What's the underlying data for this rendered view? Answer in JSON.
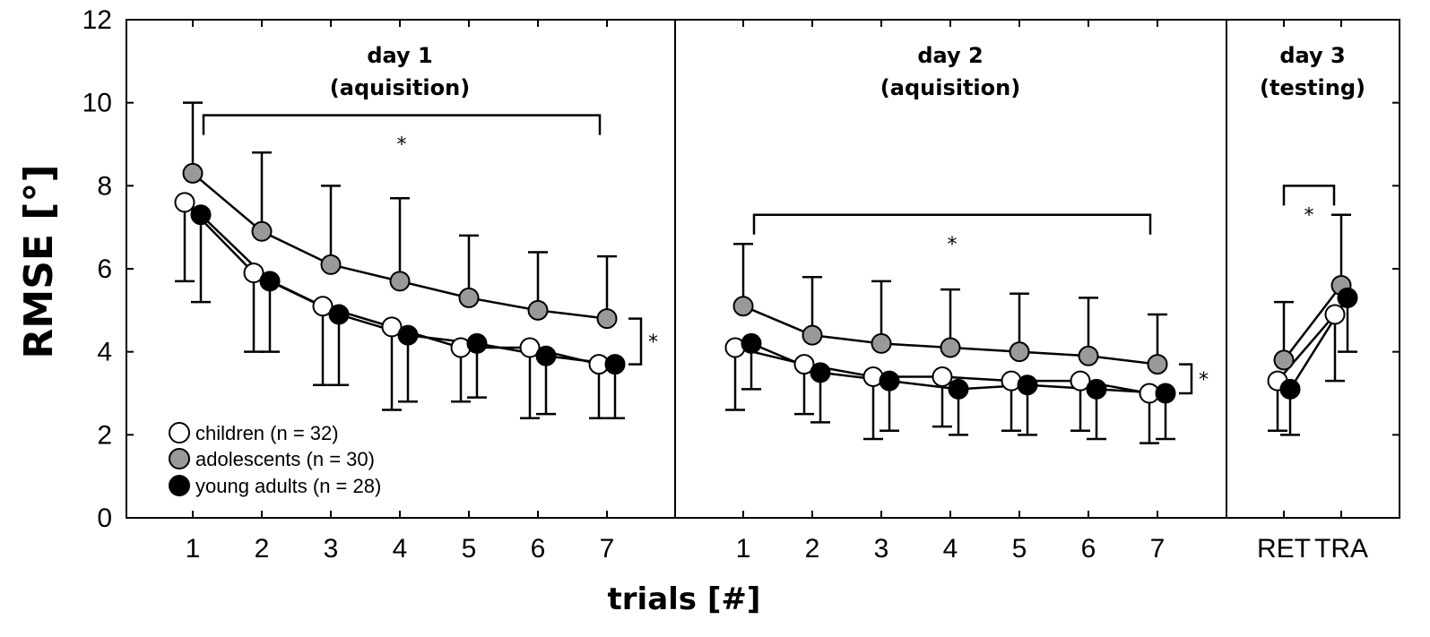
{
  "chart_data": {
    "type": "line",
    "ylabel": "RMSE [°]",
    "xlabel": "trials [#]",
    "ylim": [
      0,
      12
    ],
    "yticks": [
      "0",
      "2",
      "4",
      "6",
      "8",
      "10",
      "12"
    ],
    "significance_marker": "*",
    "series": [
      {
        "name": "children",
        "legend": "children (n = 32)",
        "color": "#ffffff"
      },
      {
        "name": "adolescents",
        "legend": "adolescents (n = 30)",
        "color": "#999999"
      },
      {
        "name": "young adults",
        "legend": "young adults (n = 28)",
        "color": "#000000"
      }
    ],
    "panels": [
      {
        "title_line1": "day 1",
        "title_line2": "(aquisition)",
        "categories": [
          "1",
          "2",
          "3",
          "4",
          "5",
          "6",
          "7"
        ],
        "values": {
          "children": [
            7.6,
            5.9,
            5.1,
            4.6,
            4.1,
            4.1,
            3.7
          ],
          "adolescents": [
            8.3,
            6.9,
            6.1,
            5.7,
            5.3,
            5.0,
            4.8
          ],
          "young adults": [
            7.3,
            5.7,
            4.9,
            4.4,
            4.2,
            3.9,
            3.7
          ]
        },
        "error_bars": {
          "children": [
            5.7,
            4.0,
            3.2,
            2.6,
            2.8,
            2.4,
            2.4
          ],
          "adolescents": [
            10.0,
            8.8,
            8.0,
            7.7,
            6.8,
            6.4,
            6.3
          ],
          "young adults": [
            5.2,
            4.0,
            3.2,
            2.8,
            2.9,
            2.5,
            2.4
          ]
        },
        "bracket": {
          "from": "1",
          "to": "7",
          "y": 9.7,
          "label": "*"
        },
        "side_bracket": {
          "y_top": 4.8,
          "y_bottom": 3.7,
          "label": "*"
        }
      },
      {
        "title_line1": "day 2",
        "title_line2": "(aquisition)",
        "categories": [
          "1",
          "2",
          "3",
          "4",
          "5",
          "6",
          "7"
        ],
        "values": {
          "children": [
            4.1,
            3.7,
            3.4,
            3.4,
            3.3,
            3.3,
            3.0
          ],
          "adolescents": [
            5.1,
            4.4,
            4.2,
            4.1,
            4.0,
            3.9,
            3.7
          ],
          "young adults": [
            4.2,
            3.5,
            3.3,
            3.1,
            3.2,
            3.1,
            3.0
          ]
        },
        "error_bars": {
          "children": [
            2.6,
            2.5,
            1.9,
            2.2,
            2.1,
            2.1,
            1.8
          ],
          "adolescents": [
            6.6,
            5.8,
            5.7,
            5.5,
            5.4,
            5.3,
            4.9
          ],
          "young adults": [
            3.1,
            2.3,
            2.1,
            2.0,
            2.0,
            1.9,
            1.9
          ]
        },
        "bracket": {
          "from": "1",
          "to": "7",
          "y": 7.3,
          "label": "*"
        },
        "side_bracket": {
          "y_top": 3.7,
          "y_bottom": 3.0,
          "label": "*"
        }
      },
      {
        "title_line1": "day 3",
        "title_line2": "(testing)",
        "categories": [
          "RET",
          "TRA"
        ],
        "values": {
          "children": [
            3.3,
            4.9
          ],
          "adolescents": [
            3.8,
            5.6
          ],
          "young adults": [
            3.1,
            5.3
          ]
        },
        "error_bars": {
          "children": [
            2.1,
            3.3
          ],
          "adolescents": [
            5.2,
            7.3
          ],
          "young adults": [
            2.0,
            4.0
          ]
        },
        "bracket": {
          "from": "RET",
          "to": "TRA",
          "y": 8.0,
          "label": "*"
        }
      }
    ]
  }
}
